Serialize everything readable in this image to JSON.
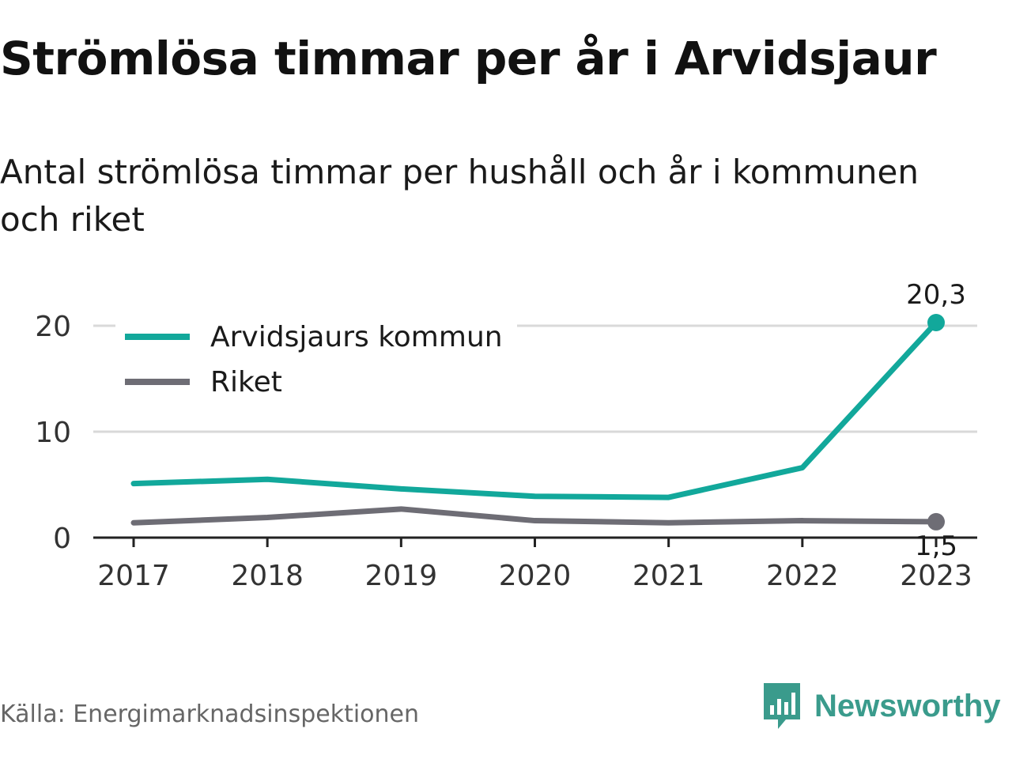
{
  "title": "Strömlösa timmar per år i Arvidsjaur",
  "subtitle": "Antal strömlösa timmar per hushåll och år i kommunen och riket",
  "source": "Källa: Energimarknadsinspektionen",
  "brand": {
    "name": "Newsworthy",
    "color": "#3a9b8c"
  },
  "colors": {
    "arvidsjaur": "#12a89b",
    "riket": "#6e6d75",
    "grid": "#d9d9d9",
    "axis": "#222222"
  },
  "chart_data": {
    "type": "line",
    "x": [
      "2017",
      "2018",
      "2019",
      "2020",
      "2021",
      "2022",
      "2023"
    ],
    "y_ticks": [
      "0",
      "10",
      "20"
    ],
    "ylim": [
      0,
      20.3
    ],
    "grid": true,
    "legend_position": "top-left",
    "series": [
      {
        "name": "Arvidsjaurs kommun",
        "color": "#12a89b",
        "values": [
          5.1,
          5.5,
          4.6,
          3.9,
          3.8,
          6.6,
          20.3
        ],
        "end_label": "20,3"
      },
      {
        "name": "Riket",
        "color": "#6e6d75",
        "values": [
          1.4,
          1.9,
          2.7,
          1.6,
          1.4,
          1.6,
          1.5
        ],
        "end_label": "1,5"
      }
    ]
  }
}
